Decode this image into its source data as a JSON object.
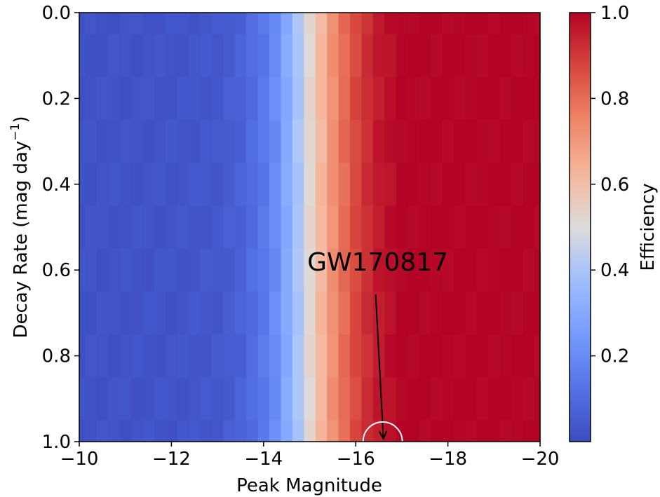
{
  "chart_data": {
    "type": "heatmap",
    "title": "",
    "xlabel": "Peak Magnitude",
    "ylabel": "Decay Rate (mag day",
    "ylabel_superscript": "−1",
    "ylabel_suffix": ")",
    "xlim": [
      -10,
      -20
    ],
    "ylim": [
      1.0,
      0.0
    ],
    "x_ticks": [
      -10,
      -12,
      -14,
      -16,
      -18,
      -20
    ],
    "x_tick_labels": [
      "−10",
      "−12",
      "−14",
      "−16",
      "−18",
      "−20"
    ],
    "y_ticks": [
      0.0,
      0.2,
      0.4,
      0.6,
      0.8,
      1.0
    ],
    "y_tick_labels": [
      "0.0",
      "0.2",
      "0.4",
      "0.6",
      "0.8",
      "1.0"
    ],
    "grid": false,
    "colormap": "coolwarm",
    "colorbar": {
      "label": "Efficiency",
      "range": [
        0.0,
        1.0
      ],
      "ticks": [
        0.2,
        0.4,
        0.6,
        0.8,
        1.0
      ],
      "tick_labels": [
        "0.2",
        "0.4",
        "0.6",
        "0.8",
        "1.0"
      ]
    },
    "x_bins": [
      -10.0,
      -10.25,
      -10.5,
      -10.75,
      -11.0,
      -11.25,
      -11.5,
      -11.75,
      -12.0,
      -12.25,
      -12.5,
      -12.75,
      -13.0,
      -13.25,
      -13.5,
      -13.75,
      -14.0,
      -14.25,
      -14.5,
      -14.75,
      -15.0,
      -15.25,
      -15.5,
      -15.75,
      -16.0,
      -16.25,
      -16.5,
      -16.75,
      -17.0,
      -17.25,
      -17.5,
      -17.75,
      -18.0,
      -18.25,
      -18.5,
      -18.75,
      -19.0,
      -19.25,
      -19.5,
      -19.75,
      -20.0
    ],
    "y_bins": [
      0.0,
      0.1,
      0.2,
      0.3,
      0.4,
      0.5,
      0.6,
      0.7,
      0.8,
      0.9,
      1.0
    ],
    "efficiency_profile": {
      "magnitude": [
        -10.0,
        -12.0,
        -13.0,
        -13.5,
        -14.0,
        -14.25,
        -14.5,
        -14.75,
        -15.0,
        -15.25,
        -15.5,
        -15.75,
        -16.0,
        -16.25,
        -16.5,
        -16.75,
        -17.0,
        -20.0
      ],
      "efficiency": [
        0.02,
        0.025,
        0.04,
        0.07,
        0.14,
        0.2,
        0.3,
        0.4,
        0.52,
        0.62,
        0.72,
        0.8,
        0.87,
        0.92,
        0.96,
        0.98,
        1.0,
        1.0
      ]
    },
    "annotation": {
      "text": "GW170817",
      "point": {
        "x": -16.6,
        "y": 1.0
      },
      "marker": "circle"
    }
  }
}
